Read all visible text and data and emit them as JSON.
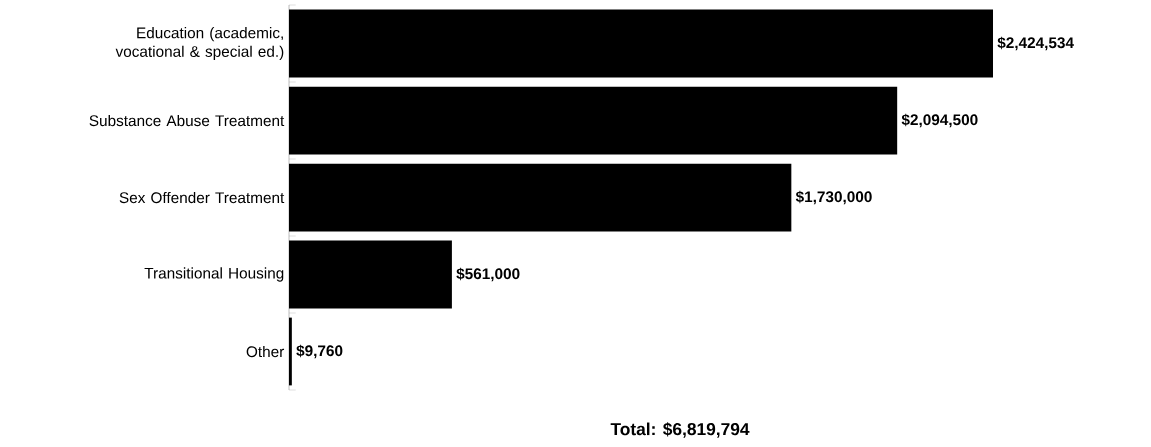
{
  "chart_data": {
    "type": "bar",
    "orientation": "horizontal",
    "categories": [
      "Education (academic, vocational & special ed.)",
      "Substance Abuse Treatment",
      "Sex Offender Treatment",
      "Transitional Housing",
      "Other"
    ],
    "values": [
      2424534,
      2094500,
      1730000,
      561000,
      9760
    ],
    "value_labels": [
      "$2,424,534",
      "$2,094,500",
      "$1,730,000",
      "$561,000",
      "$9,760"
    ],
    "color": "#000000",
    "tick_labels": "y",
    "annotations": [
      "**Total: $6,819,794**"
    ]
  }
}
